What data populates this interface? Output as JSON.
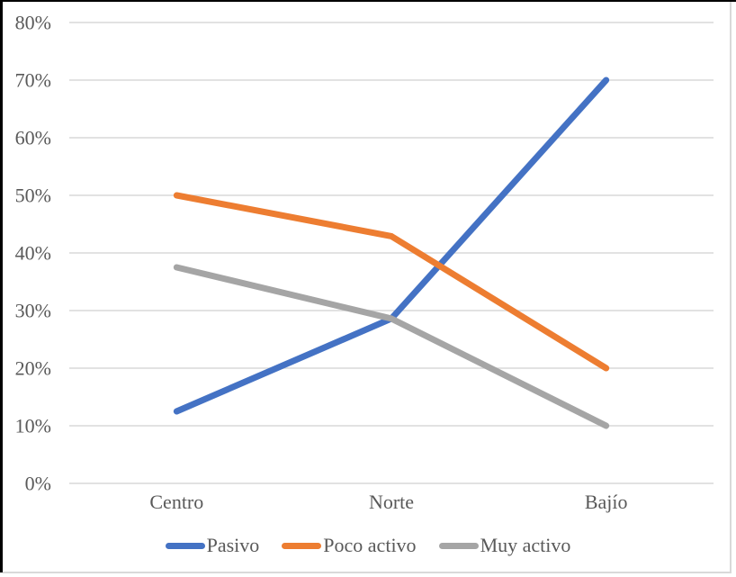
{
  "chart_data": {
    "type": "line",
    "categories": [
      "Centro",
      "Norte",
      "Bajío"
    ],
    "series": [
      {
        "name": "Pasivo",
        "color": "#4472C4",
        "values": [
          12.5,
          28.6,
          70
        ]
      },
      {
        "name": "Poco activo",
        "color": "#ED7D31",
        "values": [
          50,
          42.9,
          20
        ]
      },
      {
        "name": "Muy activo",
        "color": "#A5A5A5",
        "values": [
          37.5,
          28.6,
          10
        ]
      }
    ],
    "title": "",
    "xlabel": "",
    "ylabel": "",
    "y_axis": {
      "min": 0,
      "max": 80,
      "step": 10,
      "format": "percent"
    },
    "tick_labels": [
      "0%",
      "10%",
      "20%",
      "30%",
      "40%",
      "50%",
      "60%",
      "70%",
      "80%"
    ],
    "grid": true,
    "gridline_color": "#D9D9D9",
    "text_color": "#595959",
    "legend_position": "bottom",
    "legend_entries": [
      "Pasivo",
      "Poco activo",
      "Muy activo"
    ]
  }
}
